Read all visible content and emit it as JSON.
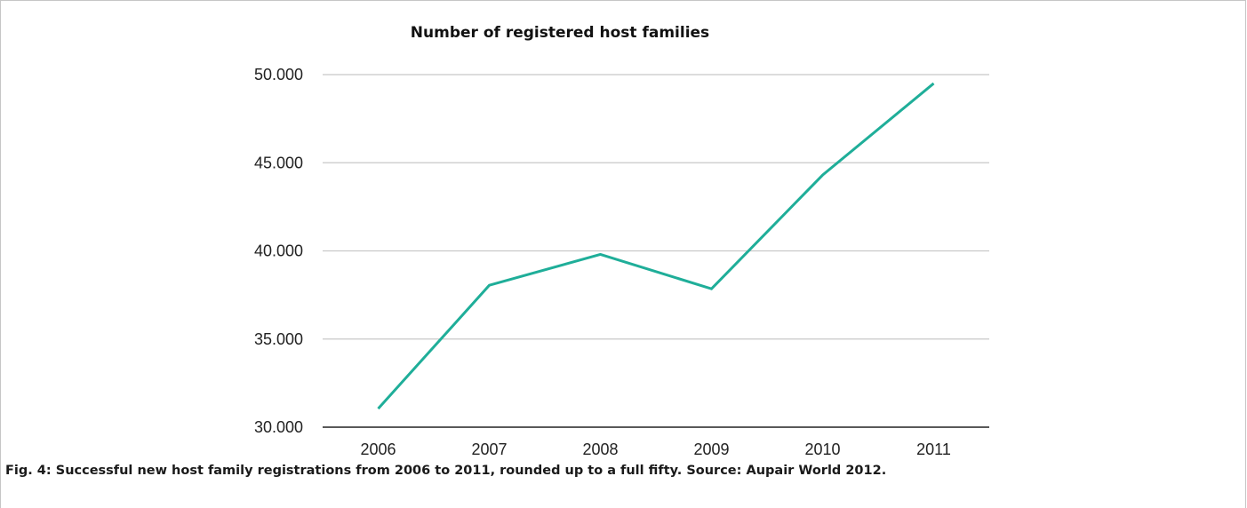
{
  "chart_data": {
    "type": "line",
    "title": "Number of registered host families",
    "categories": [
      "2006",
      "2007",
      "2008",
      "2009",
      "2010",
      "2011"
    ],
    "values": [
      31050,
      38050,
      39800,
      37850,
      44300,
      49500
    ],
    "ylim": [
      30000,
      50000
    ],
    "yticks": [
      30000,
      35000,
      40000,
      45000,
      50000
    ],
    "ytick_labels": [
      "30.000",
      "35.000",
      "40.000",
      "45.000",
      "50.000"
    ],
    "grid": true,
    "line_color": "#1fae99",
    "grid_color": "#c8c8c8",
    "axis_color": "#222222"
  },
  "caption": "Fig. 4: Successful new host family registrations from 2006 to 2011, rounded up to a full fifty. Source: Aupair World 2012."
}
